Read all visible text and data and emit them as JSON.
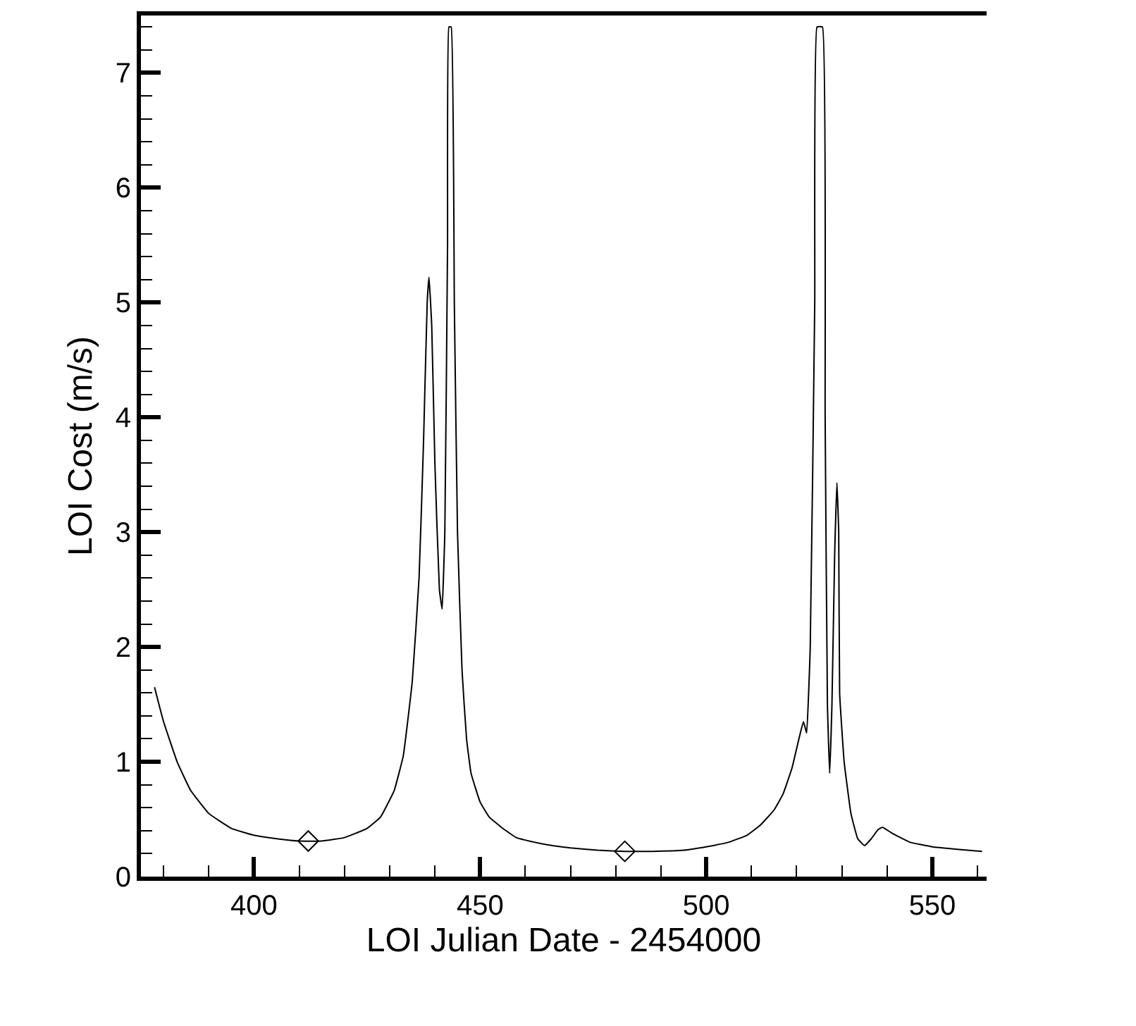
{
  "chart_data": {
    "type": "line",
    "xlabel": "LOI Julian Date - 2454000",
    "ylabel": "LOI Cost (m/s)",
    "xlim": [
      375,
      562
    ],
    "ylim": [
      0,
      7.5
    ],
    "xticks": [
      {
        "value": 380,
        "label": null
      },
      {
        "value": 390,
        "label": null
      },
      400,
      {
        "value": 410,
        "label": null
      },
      {
        "value": 420,
        "label": null
      },
      {
        "value": 430,
        "label": null
      },
      {
        "value": 440,
        "label": null
      },
      450,
      {
        "value": 460,
        "label": null
      },
      {
        "value": 470,
        "label": null
      },
      {
        "value": 480,
        "label": null
      },
      {
        "value": 490,
        "label": null
      },
      500,
      {
        "value": 510,
        "label": null
      },
      {
        "value": 520,
        "label": null
      },
      {
        "value": 530,
        "label": null
      },
      {
        "value": 540,
        "label": null
      },
      550,
      {
        "value": 560,
        "label": null
      }
    ],
    "yticks": [
      0,
      {
        "value": 0.2,
        "label": null
      },
      {
        "value": 0.4,
        "label": null
      },
      {
        "value": 0.6,
        "label": null
      },
      {
        "value": 0.8,
        "label": null
      },
      1,
      {
        "value": 1.2,
        "label": null
      },
      {
        "value": 1.4,
        "label": null
      },
      {
        "value": 1.6,
        "label": null
      },
      {
        "value": 1.8,
        "label": null
      },
      2,
      {
        "value": 2.2,
        "label": null
      },
      {
        "value": 2.4,
        "label": null
      },
      {
        "value": 2.6,
        "label": null
      },
      {
        "value": 2.8,
        "label": null
      },
      3,
      {
        "value": 3.2,
        "label": null
      },
      {
        "value": 3.4,
        "label": null
      },
      {
        "value": 3.6,
        "label": null
      },
      {
        "value": 3.8,
        "label": null
      },
      4,
      {
        "value": 4.2,
        "label": null
      },
      {
        "value": 4.4,
        "label": null
      },
      {
        "value": 4.6,
        "label": null
      },
      {
        "value": 4.8,
        "label": null
      },
      5,
      {
        "value": 5.2,
        "label": null
      },
      {
        "value": 5.4,
        "label": null
      },
      {
        "value": 5.6,
        "label": null
      },
      {
        "value": 5.8,
        "label": null
      },
      6,
      {
        "value": 6.2,
        "label": null
      },
      {
        "value": 6.4,
        "label": null
      },
      {
        "value": 6.6,
        "label": null
      },
      {
        "value": 6.8,
        "label": null
      },
      7,
      {
        "value": 7.2,
        "label": null
      },
      {
        "value": 7.4,
        "label": null
      }
    ],
    "series": [
      {
        "color": "#000000",
        "marker": "none",
        "line_style": "solid",
        "x": [
          378,
          380,
          383,
          386,
          390,
          395,
          400,
          405,
          410,
          415,
          420,
          425,
          428,
          431,
          433,
          435,
          436.5,
          437.5,
          438.3,
          438.7,
          439.3,
          440,
          441,
          441.6,
          442.2,
          442.8,
          443.1,
          443.6,
          444.3,
          445,
          446,
          447,
          448,
          450,
          452,
          455,
          458,
          462,
          466,
          470,
          476,
          482,
          488,
          495,
          500,
          505,
          509,
          512,
          515,
          517,
          519,
          520.5,
          521.5,
          522.2,
          523,
          524,
          524.5,
          525.7,
          526.3,
          526.8,
          527.3,
          527.8,
          528.4,
          528.9,
          529.3,
          529.5,
          530.5,
          532,
          533.5,
          535,
          536.5,
          538,
          539,
          541,
          545,
          550,
          555,
          561
        ],
        "values": [
          1.65,
          1.35,
          1.0,
          0.75,
          0.55,
          0.42,
          0.36,
          0.33,
          0.31,
          0.31,
          0.34,
          0.42,
          0.52,
          0.75,
          1.05,
          1.7,
          2.6,
          3.8,
          5.0,
          5.22,
          4.8,
          3.6,
          2.5,
          2.33,
          3.0,
          5.5,
          7.4,
          7.4,
          5,
          3,
          1.8,
          1.2,
          0.9,
          0.65,
          0.52,
          0.42,
          0.34,
          0.3,
          0.27,
          0.25,
          0.23,
          0.22,
          0.22,
          0.23,
          0.26,
          0.3,
          0.36,
          0.45,
          0.58,
          0.72,
          0.95,
          1.2,
          1.35,
          1.25,
          2,
          5,
          7.4,
          7.4,
          4,
          1.5,
          0.9,
          1.5,
          2.8,
          3.43,
          3.0,
          1.6,
          1.0,
          0.55,
          0.33,
          0.27,
          0.33,
          0.41,
          0.43,
          0.38,
          0.3,
          0.26,
          0.24,
          0.22
        ]
      },
      {
        "type": "scatter",
        "color": "#000000",
        "marker": "diamond",
        "x": [
          412,
          482
        ],
        "values": [
          0.31,
          0.22
        ]
      }
    ]
  }
}
